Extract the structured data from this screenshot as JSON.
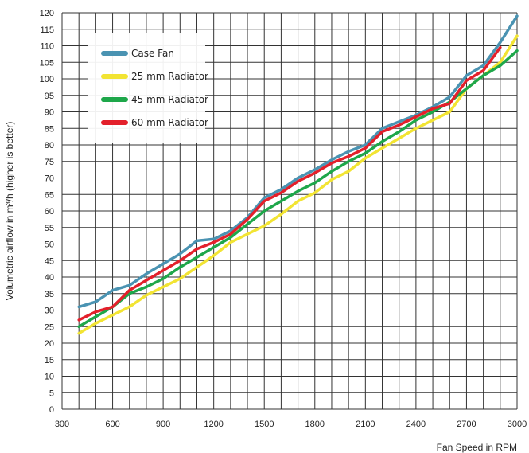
{
  "chart_data": {
    "type": "line",
    "xlabel": "Fan Speed in RPM",
    "ylabel": "Volumetric airflow in m³/h (higher is better)",
    "xlim": [
      300,
      3000
    ],
    "ylim": [
      0,
      120
    ],
    "x_ticks": [
      300,
      600,
      900,
      1200,
      1500,
      1800,
      2100,
      2400,
      2700,
      3000
    ],
    "y_ticks": [
      0,
      5,
      10,
      15,
      20,
      25,
      30,
      35,
      40,
      45,
      50,
      55,
      60,
      65,
      70,
      75,
      80,
      85,
      90,
      95,
      100,
      105,
      110,
      115,
      120
    ],
    "grid": true,
    "legend_position": "top-left",
    "series": [
      {
        "name": "Case Fan",
        "color": "#4a93b2",
        "points": [
          [
            400,
            31
          ],
          [
            500,
            32.5
          ],
          [
            600,
            36
          ],
          [
            700,
            37.5
          ],
          [
            800,
            41
          ],
          [
            900,
            44
          ],
          [
            1000,
            47
          ],
          [
            1100,
            51
          ],
          [
            1200,
            51.5
          ],
          [
            1300,
            54
          ],
          [
            1400,
            58
          ],
          [
            1500,
            64
          ],
          [
            1600,
            66.5
          ],
          [
            1700,
            70
          ],
          [
            1800,
            72.5
          ],
          [
            1900,
            75.5
          ],
          [
            2000,
            78
          ],
          [
            2100,
            80
          ],
          [
            2200,
            85
          ],
          [
            2300,
            87
          ],
          [
            2400,
            89
          ],
          [
            2500,
            91.5
          ],
          [
            2600,
            94.5
          ],
          [
            2700,
            101
          ],
          [
            2800,
            104
          ],
          [
            2900,
            111
          ],
          [
            3000,
            119
          ]
        ]
      },
      {
        "name": "25 mm Radiator",
        "color": "#f2e433",
        "points": [
          [
            400,
            23
          ],
          [
            500,
            26
          ],
          [
            600,
            28.5
          ],
          [
            700,
            31
          ],
          [
            800,
            34.5
          ],
          [
            900,
            37
          ],
          [
            1000,
            39.5
          ],
          [
            1100,
            43
          ],
          [
            1200,
            46.5
          ],
          [
            1300,
            50.5
          ],
          [
            1400,
            53
          ],
          [
            1500,
            55.5
          ],
          [
            1600,
            59
          ],
          [
            1700,
            63
          ],
          [
            1800,
            65.5
          ],
          [
            1900,
            69.5
          ],
          [
            2000,
            72
          ],
          [
            2100,
            76
          ],
          [
            2200,
            79
          ],
          [
            2300,
            82
          ],
          [
            2400,
            85
          ],
          [
            2500,
            87.5
          ],
          [
            2600,
            90
          ],
          [
            2700,
            97
          ],
          [
            2800,
            101
          ],
          [
            2900,
            105
          ],
          [
            3000,
            113
          ]
        ]
      },
      {
        "name": "45 mm Radiator",
        "color": "#1ea74a",
        "points": [
          [
            400,
            25
          ],
          [
            500,
            28
          ],
          [
            600,
            31
          ],
          [
            700,
            35
          ],
          [
            800,
            37
          ],
          [
            900,
            39.5
          ],
          [
            1000,
            43
          ],
          [
            1100,
            46
          ],
          [
            1200,
            49
          ],
          [
            1300,
            52
          ],
          [
            1400,
            56
          ],
          [
            1500,
            60
          ],
          [
            1600,
            63
          ],
          [
            1700,
            66
          ],
          [
            1800,
            68.5
          ],
          [
            1900,
            72
          ],
          [
            2000,
            75
          ],
          [
            2100,
            77.5
          ],
          [
            2200,
            81
          ],
          [
            2300,
            84
          ],
          [
            2400,
            87.5
          ],
          [
            2500,
            90
          ],
          [
            2600,
            93
          ],
          [
            2700,
            97
          ],
          [
            2800,
            101
          ],
          [
            2900,
            104
          ],
          [
            3000,
            108.5
          ]
        ]
      },
      {
        "name": "60 mm Radiator",
        "color": "#e3202b",
        "points": [
          [
            400,
            27
          ],
          [
            500,
            29.5
          ],
          [
            600,
            31
          ],
          [
            700,
            36
          ],
          [
            800,
            39
          ],
          [
            900,
            42
          ],
          [
            1000,
            45
          ],
          [
            1100,
            48.5
          ],
          [
            1200,
            50.5
          ],
          [
            1300,
            53
          ],
          [
            1400,
            57.5
          ],
          [
            1500,
            63
          ],
          [
            1600,
            65.5
          ],
          [
            1700,
            69
          ],
          [
            1800,
            71.5
          ],
          [
            1900,
            74.5
          ],
          [
            2000,
            76.5
          ],
          [
            2100,
            79
          ],
          [
            2200,
            84
          ],
          [
            2300,
            86
          ],
          [
            2400,
            88.5
          ],
          [
            2500,
            91
          ],
          [
            2600,
            92.5
          ],
          [
            2700,
            99.5
          ],
          [
            2800,
            102.5
          ],
          [
            2900,
            109.5
          ]
        ]
      }
    ]
  }
}
